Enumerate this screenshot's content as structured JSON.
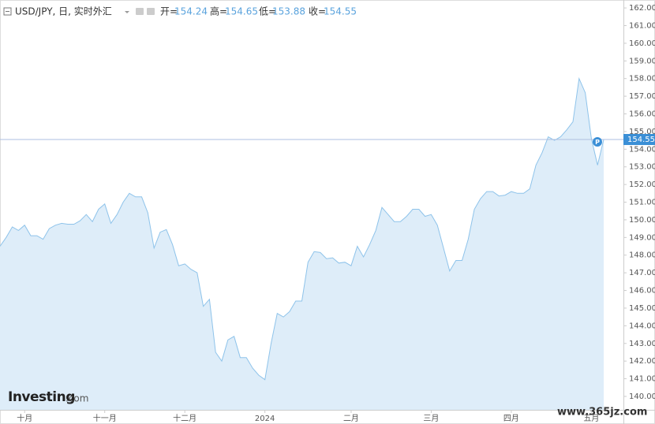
{
  "header": {
    "symbol": "USD/JPY, 日, 实时外汇",
    "open_label": "开=",
    "open": 154.24,
    "high_label": "高=",
    "high": 154.65,
    "low_label": "低=",
    "low": 153.88,
    "close_label": "收=",
    "close": 154.55
  },
  "logo": "Investing",
  "logo_suffix": ".com",
  "watermark": "www.365jz.com",
  "marker_label": "P",
  "chart_data": {
    "type": "area",
    "color": "#8ec3ea",
    "fill": "#deedf9",
    "categories": [
      null,
      null,
      null,
      null,
      "十月",
      null,
      null,
      null,
      null,
      null,
      null,
      null,
      null,
      null,
      null,
      null,
      null,
      "十一月",
      null,
      null,
      null,
      null,
      null,
      null,
      null,
      null,
      null,
      null,
      null,
      null,
      "十二月",
      null,
      null,
      null,
      null,
      null,
      null,
      null,
      null,
      null,
      null,
      null,
      null,
      "2024",
      null,
      null,
      null,
      null,
      null,
      null,
      null,
      null,
      null,
      null,
      null,
      null,
      null,
      "二月",
      null,
      null,
      null,
      null,
      null,
      null,
      null,
      null,
      null,
      null,
      null,
      null,
      "三月",
      null,
      null,
      null,
      null,
      null,
      null,
      null,
      null,
      null,
      null,
      null,
      null,
      "四月",
      null,
      null,
      null,
      null,
      null,
      null,
      null,
      null,
      null,
      null,
      null,
      null,
      "五月",
      null,
      null
    ],
    "values": [
      148.5,
      149.0,
      149.6,
      149.4,
      149.7,
      149.1,
      149.1,
      148.9,
      149.5,
      149.7,
      149.8,
      149.75,
      149.75,
      149.95,
      150.3,
      149.9,
      150.6,
      150.9,
      149.8,
      150.3,
      151.0,
      151.5,
      151.3,
      151.3,
      150.4,
      148.4,
      149.3,
      149.45,
      148.6,
      147.4,
      147.5,
      147.2,
      147.0,
      145.1,
      145.5,
      142.5,
      142.0,
      143.2,
      143.4,
      142.2,
      142.2,
      141.6,
      141.2,
      140.95,
      143.0,
      144.7,
      144.5,
      144.8,
      145.4,
      145.4,
      147.6,
      148.2,
      148.15,
      147.8,
      147.85,
      147.55,
      147.6,
      147.4,
      148.5,
      147.9,
      148.6,
      149.4,
      150.7,
      150.3,
      149.9,
      149.9,
      150.2,
      150.6,
      150.6,
      150.2,
      150.3,
      149.7,
      148.4,
      147.1,
      147.7,
      147.7,
      148.9,
      150.6,
      151.2,
      151.6,
      151.6,
      151.35,
      151.4,
      151.6,
      151.5,
      151.5,
      151.75,
      153.1,
      153.8,
      154.7,
      154.5,
      154.7,
      155.1,
      155.55,
      158.0,
      157.2,
      154.6,
      153.1,
      154.55
    ],
    "ylim": [
      139.24,
      162.45
    ],
    "yticks": [
      {
        "value": 140,
        "label": "140.00"
      },
      {
        "value": 141,
        "label": "141.00"
      },
      {
        "value": 142,
        "label": "142.00"
      },
      {
        "value": 143,
        "label": "143.00"
      },
      {
        "value": 144,
        "label": "144.00"
      },
      {
        "value": 145,
        "label": "145.00"
      },
      {
        "value": 146,
        "label": "146.00"
      },
      {
        "value": 147,
        "label": "147.00"
      },
      {
        "value": 148,
        "label": "148.00"
      },
      {
        "value": 149,
        "label": "149.00"
      },
      {
        "value": 150,
        "label": "150.00"
      },
      {
        "value": 151,
        "label": "151.00"
      },
      {
        "value": 152,
        "label": "152.00"
      },
      {
        "value": 153,
        "label": "153.00"
      },
      {
        "value": 154,
        "label": "154.00"
      },
      {
        "value": 155,
        "label": "155.00"
      },
      {
        "value": 156,
        "label": "156.00"
      },
      {
        "value": 157,
        "label": "157.00"
      },
      {
        "value": 158,
        "label": "158.00"
      },
      {
        "value": 159,
        "label": "159.00"
      },
      {
        "value": 160,
        "label": "160.00"
      },
      {
        "value": 161,
        "label": "161.00"
      },
      {
        "value": 162,
        "label": "162.00"
      }
    ],
    "grid": false
  }
}
